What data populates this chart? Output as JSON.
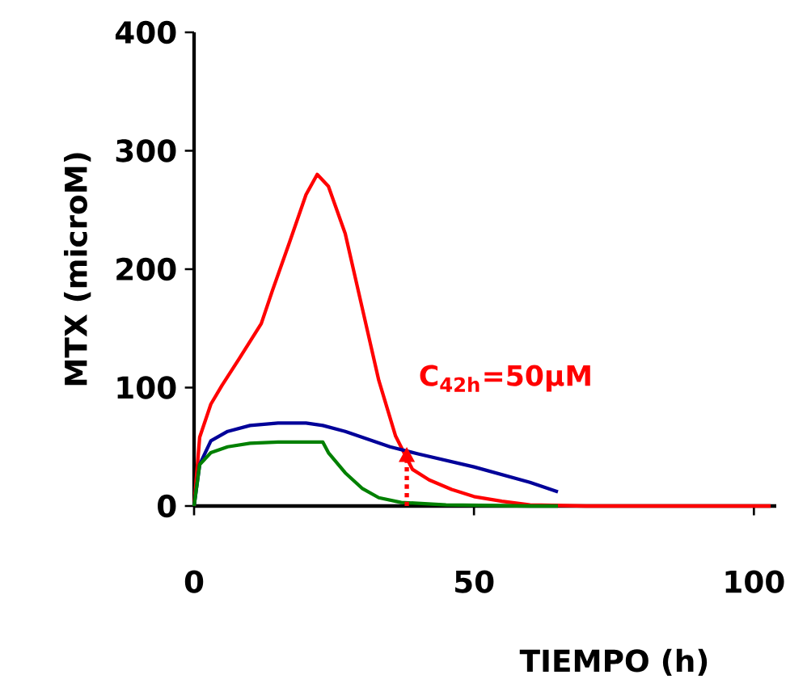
{
  "chart_data": {
    "type": "line",
    "xlabel": "TIEMPO (h)",
    "ylabel": "MTX (microM)",
    "xlim": [
      0,
      104
    ],
    "ylim": [
      0,
      400
    ],
    "xticks": [
      0,
      50,
      100
    ],
    "yticks": [
      0,
      100,
      200,
      300,
      400
    ],
    "grid": false,
    "marker": "none",
    "line_style": "solid",
    "series": [
      {
        "color": "#ff0000",
        "x": [
          0,
          1,
          3,
          5,
          8,
          12,
          14,
          17,
          20,
          22,
          24,
          27,
          30,
          33,
          36,
          39,
          42,
          46,
          50,
          55,
          60,
          70,
          103
        ],
        "values": [
          0,
          58,
          86,
          102,
          124,
          154,
          182,
          222,
          263,
          280,
          270,
          230,
          168,
          106,
          59,
          31,
          22,
          14,
          8,
          4,
          1,
          0,
          0
        ]
      },
      {
        "color": "#000099",
        "x": [
          0,
          1,
          3,
          6,
          10,
          15,
          20,
          23,
          27,
          35,
          40,
          50,
          60,
          65
        ],
        "values": [
          0,
          35,
          55,
          63,
          68,
          70,
          70,
          68,
          63,
          50,
          44,
          33,
          20,
          12
        ]
      },
      {
        "color": "#008000",
        "x": [
          0,
          1,
          3,
          6,
          10,
          15,
          23,
          24,
          27,
          30,
          33,
          37,
          45,
          60,
          65
        ],
        "values": [
          0,
          35,
          45,
          50,
          53,
          54,
          54,
          45,
          28,
          15,
          7,
          3,
          1,
          0,
          0
        ]
      }
    ],
    "annotations": [
      {
        "text": "C$_{42h}$=50µM",
        "x": 38,
        "y": 50
      }
    ]
  }
}
